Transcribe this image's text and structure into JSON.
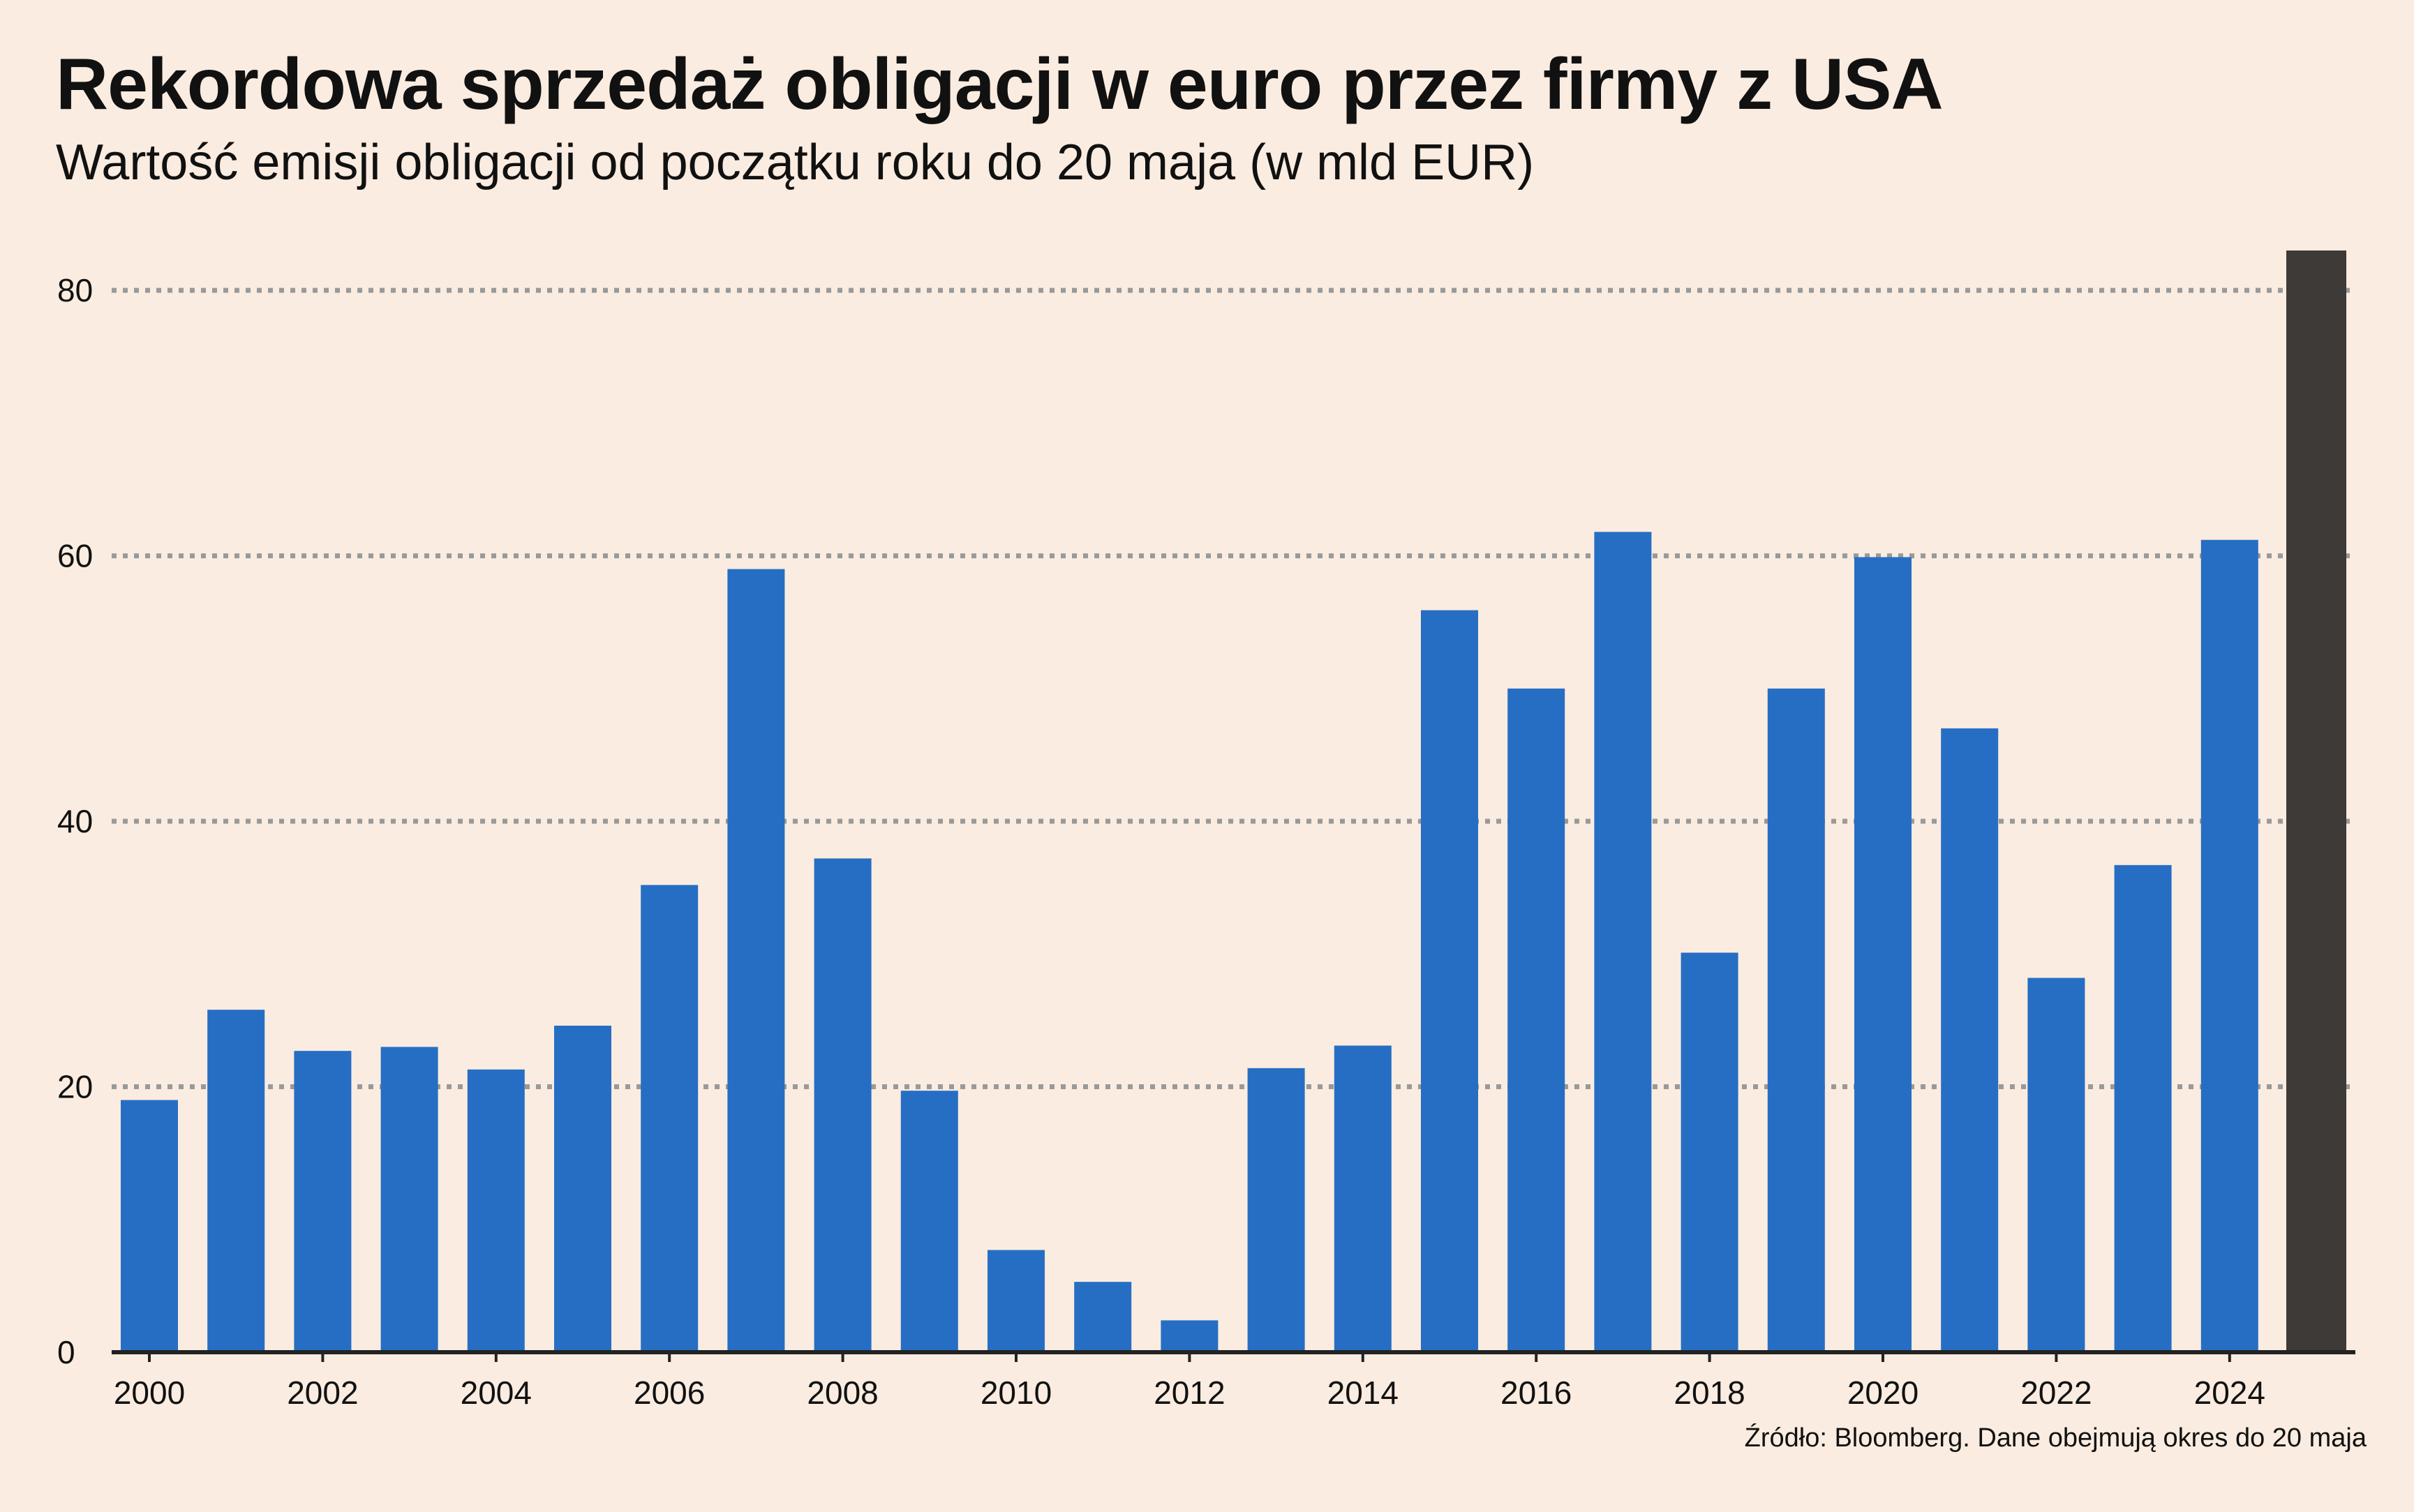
{
  "chart_data": {
    "type": "bar",
    "title": "Rekordowa sprzedaż obligacji w euro przez firmy z USA",
    "subtitle": "Wartość emisji obligacji od początku roku do 20 maja (w mld EUR)",
    "source": "Źródło: Bloomberg. Dane obejmują okres do 20 maja",
    "xlabel": "",
    "ylabel": "",
    "ylim": [
      0,
      84
    ],
    "yticks": [
      0,
      20,
      40,
      60,
      80
    ],
    "xtick_labels": [
      "2000",
      "2002",
      "2004",
      "2006",
      "2008",
      "2010",
      "2012",
      "2014",
      "2016",
      "2018",
      "2020",
      "2022",
      "2024"
    ],
    "grid": "horizontal dotted",
    "categories": [
      "2000",
      "2001",
      "2002",
      "2003",
      "2004",
      "2005",
      "2006",
      "2007",
      "2008",
      "2009",
      "2010",
      "2011",
      "2012",
      "2013",
      "2014",
      "2015",
      "2016",
      "2017",
      "2018",
      "2019",
      "2020",
      "2021",
      "2022",
      "2023",
      "2024",
      "2025"
    ],
    "values": [
      19,
      25.8,
      22.7,
      23,
      21.3,
      24.6,
      35.2,
      59,
      37.2,
      19.7,
      7.7,
      5.3,
      2.4,
      21.4,
      23.1,
      55.9,
      50,
      61.8,
      30.1,
      50,
      59.9,
      47,
      28.2,
      36.7,
      61.2,
      83
    ],
    "colors": {
      "bar": "#266ec4",
      "highlight_bar": "#3d3a37",
      "grid": "#999999",
      "axis": "#222222",
      "background": "#faece0"
    },
    "highlight_category": "2025"
  }
}
